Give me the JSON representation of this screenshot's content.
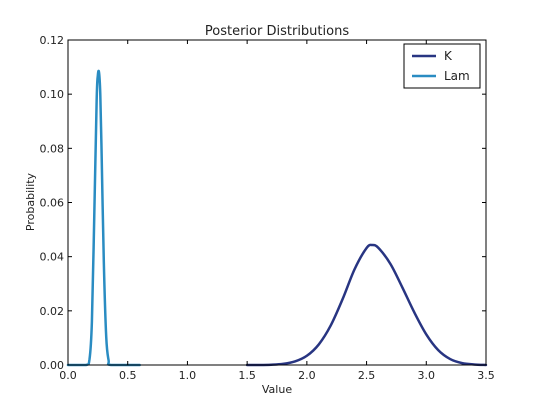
{
  "chart_data": {
    "type": "line",
    "title": "Posterior Distributions",
    "xlabel": "Value",
    "ylabel": "Probability",
    "xlim": [
      0.0,
      3.5
    ],
    "ylim": [
      0.0,
      0.12
    ],
    "xticks": [
      "0.0",
      "0.5",
      "1.0",
      "1.5",
      "2.0",
      "2.5",
      "3.0",
      "3.5"
    ],
    "yticks": [
      "0.00",
      "0.02",
      "0.04",
      "0.06",
      "0.08",
      "0.10",
      "0.12"
    ],
    "grid": false,
    "legend_position": "top-right",
    "series": [
      {
        "name": "K",
        "color": "#283582",
        "x": [
          1.5,
          1.6,
          1.7,
          1.8,
          1.9,
          2.0,
          2.1,
          2.2,
          2.3,
          2.4,
          2.5,
          2.55,
          2.6,
          2.7,
          2.8,
          2.9,
          3.0,
          3.1,
          3.2,
          3.3,
          3.4,
          3.5
        ],
        "y": [
          0.0,
          0.0,
          0.0001,
          0.0004,
          0.0013,
          0.0034,
          0.0076,
          0.0146,
          0.0244,
          0.0354,
          0.0432,
          0.0443,
          0.0432,
          0.0373,
          0.0286,
          0.0194,
          0.0113,
          0.0055,
          0.0022,
          0.0007,
          0.0002,
          0.0
        ]
      },
      {
        "name": "Lam",
        "color": "#2a8cc2",
        "x": [
          0.0,
          0.15,
          0.18,
          0.2,
          0.22,
          0.24,
          0.25,
          0.26,
          0.27,
          0.28,
          0.3,
          0.32,
          0.34,
          0.36,
          0.6
        ],
        "y": [
          0.0,
          0.0,
          0.0021,
          0.0159,
          0.0551,
          0.0979,
          0.107,
          0.108,
          0.1004,
          0.0814,
          0.0379,
          0.0104,
          0.0017,
          0.0,
          0.0
        ]
      }
    ]
  }
}
